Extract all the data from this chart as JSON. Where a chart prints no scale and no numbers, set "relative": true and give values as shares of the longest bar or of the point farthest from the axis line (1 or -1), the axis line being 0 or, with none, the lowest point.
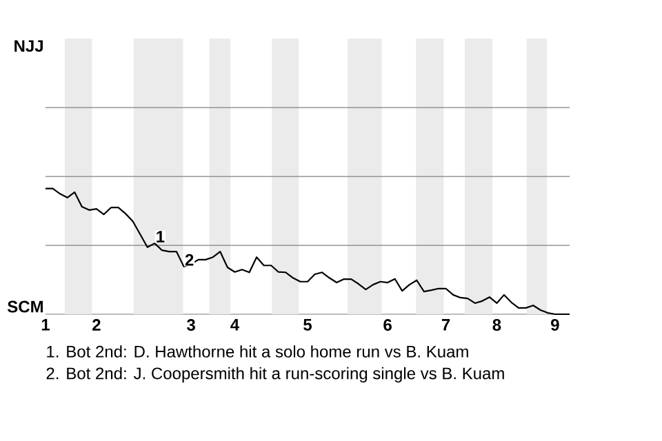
{
  "chart_data": {
    "type": "line",
    "relative": true,
    "categories": [
      "1",
      null,
      null,
      null,
      null,
      null,
      null,
      "2",
      null,
      null,
      null,
      null,
      null,
      null,
      null,
      null,
      null,
      null,
      null,
      null,
      "3",
      null,
      null,
      null,
      null,
      null,
      "4",
      null,
      null,
      null,
      null,
      null,
      null,
      null,
      null,
      null,
      "5",
      null,
      null,
      null,
      null,
      null,
      null,
      null,
      null,
      null,
      null,
      "6",
      null,
      null,
      null,
      null,
      null,
      null,
      null,
      "7",
      null,
      null,
      null,
      null,
      null,
      null,
      "8",
      null,
      null,
      null,
      null,
      null,
      null,
      null,
      "9",
      null,
      null
    ],
    "series": [
      {
        "color": "#000000",
        "values": [
          1.0,
          1.0,
          0.958,
          0.928,
          0.971,
          0.855,
          0.829,
          0.838,
          0.794,
          0.849,
          0.849,
          0.8,
          0.739,
          0.636,
          0.533,
          0.564,
          0.509,
          0.498,
          0.498,
          0.379,
          0.399,
          0.434,
          0.434,
          0.454,
          0.498,
          0.373,
          0.336,
          0.355,
          0.333,
          0.454,
          0.388,
          0.388,
          0.336,
          0.333,
          0.289,
          0.259,
          0.259,
          0.318,
          0.333,
          0.289,
          0.252,
          0.279,
          0.279,
          0.241,
          0.197,
          0.235,
          0.259,
          0.252,
          0.281,
          0.186,
          0.235,
          0.27,
          0.18,
          0.191,
          0.204,
          0.204,
          0.154,
          0.132,
          0.125,
          0.088,
          0.105,
          0.136,
          0.088,
          0.154,
          0.094,
          0.05,
          0.05,
          0.07,
          0.033,
          0.011,
          0,
          0,
          0
        ],
        "line_style": "solid"
      }
    ],
    "ref_lines": [
      {
        "axis": "y",
        "value": 0.548,
        "color": "#808080"
      },
      {
        "axis": "y",
        "value": 1.096,
        "color": "#808080"
      },
      {
        "axis": "y",
        "value": 1.645,
        "color": "#808080"
      }
    ],
    "annotations": [
      "NJJ",
      "SCM",
      {
        "text": "1",
        "y": 0.564
      },
      {
        "text": "2",
        "y": 0.379
      },
      "1. Bot 2nd: D. Hawthorne hit a solo home run vs B. Kuam",
      "2. Bot 2nd: J. Coopersmith hit a run-scoring single vs B. Kuam"
    ]
  }
}
